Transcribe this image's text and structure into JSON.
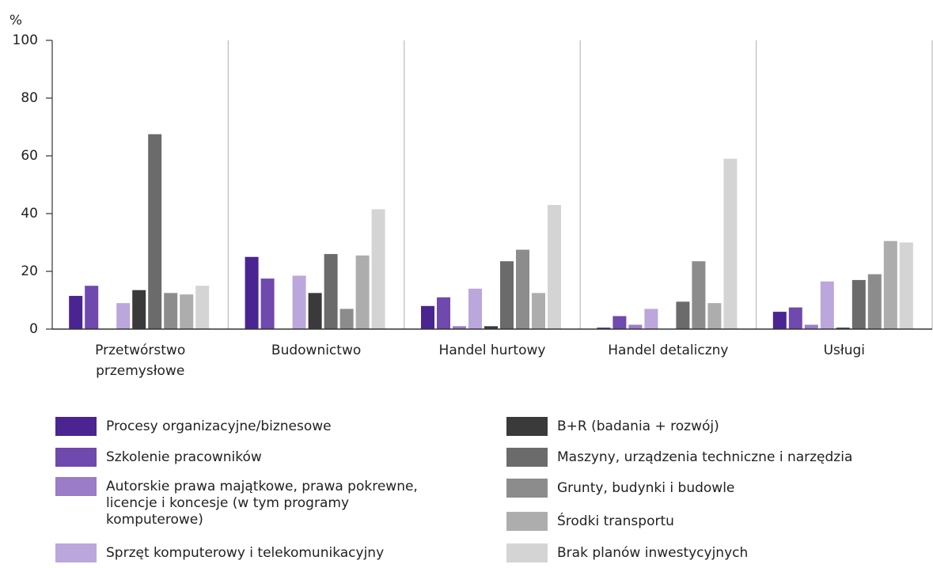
{
  "chart_data": {
    "type": "bar",
    "y_label": "%",
    "categories": [
      "Przetwórstwo przemysłowe",
      "Budownictwo",
      "Handel hurtowy",
      "Handel detaliczny",
      "Usługi"
    ],
    "ylim": [
      0,
      100
    ],
    "yticks": [
      0,
      20,
      40,
      60,
      80,
      100
    ],
    "series": [
      {
        "name": "Procesy organizacyjne/biznesowe",
        "color": "#4a2490",
        "values": [
          11.5,
          25,
          8,
          0.5,
          6
        ]
      },
      {
        "name": "Szkolenie pracowników",
        "color": "#6f49ad",
        "values": [
          15,
          17.5,
          11,
          4.5,
          7.5
        ]
      },
      {
        "name": "Autorskie prawa majątkowe, prawa pokrewne, licencje i koncesje (w tym programy komputerowe)",
        "color": "#9a7cc8",
        "values": [
          0,
          0,
          1,
          1.5,
          1.5
        ]
      },
      {
        "name": "Sprzęt komputerowy i telekomunikacyjny",
        "color": "#bba7db",
        "values": [
          9,
          18.5,
          14,
          7,
          16.5
        ]
      },
      {
        "name": "B+R (badania + rozwój)",
        "color": "#3a3a3a",
        "values": [
          13.5,
          12.5,
          1,
          0,
          0.5
        ]
      },
      {
        "name": "Maszyny, urządzenia techniczne i narzędzia",
        "color": "#6b6b6b",
        "values": [
          67.5,
          26,
          23.5,
          9.5,
          17
        ]
      },
      {
        "name": "Grunty, budynki i budowle",
        "color": "#8c8c8c",
        "values": [
          12.5,
          7,
          27.5,
          23.5,
          19
        ]
      },
      {
        "name": "Środki transportu",
        "color": "#adadad",
        "values": [
          12,
          25.5,
          12.5,
          9,
          30.5
        ]
      },
      {
        "name": "Brak planów inwestycyjnych",
        "color": "#d4d4d4",
        "values": [
          15,
          41.5,
          43,
          59,
          30
        ]
      }
    ]
  }
}
